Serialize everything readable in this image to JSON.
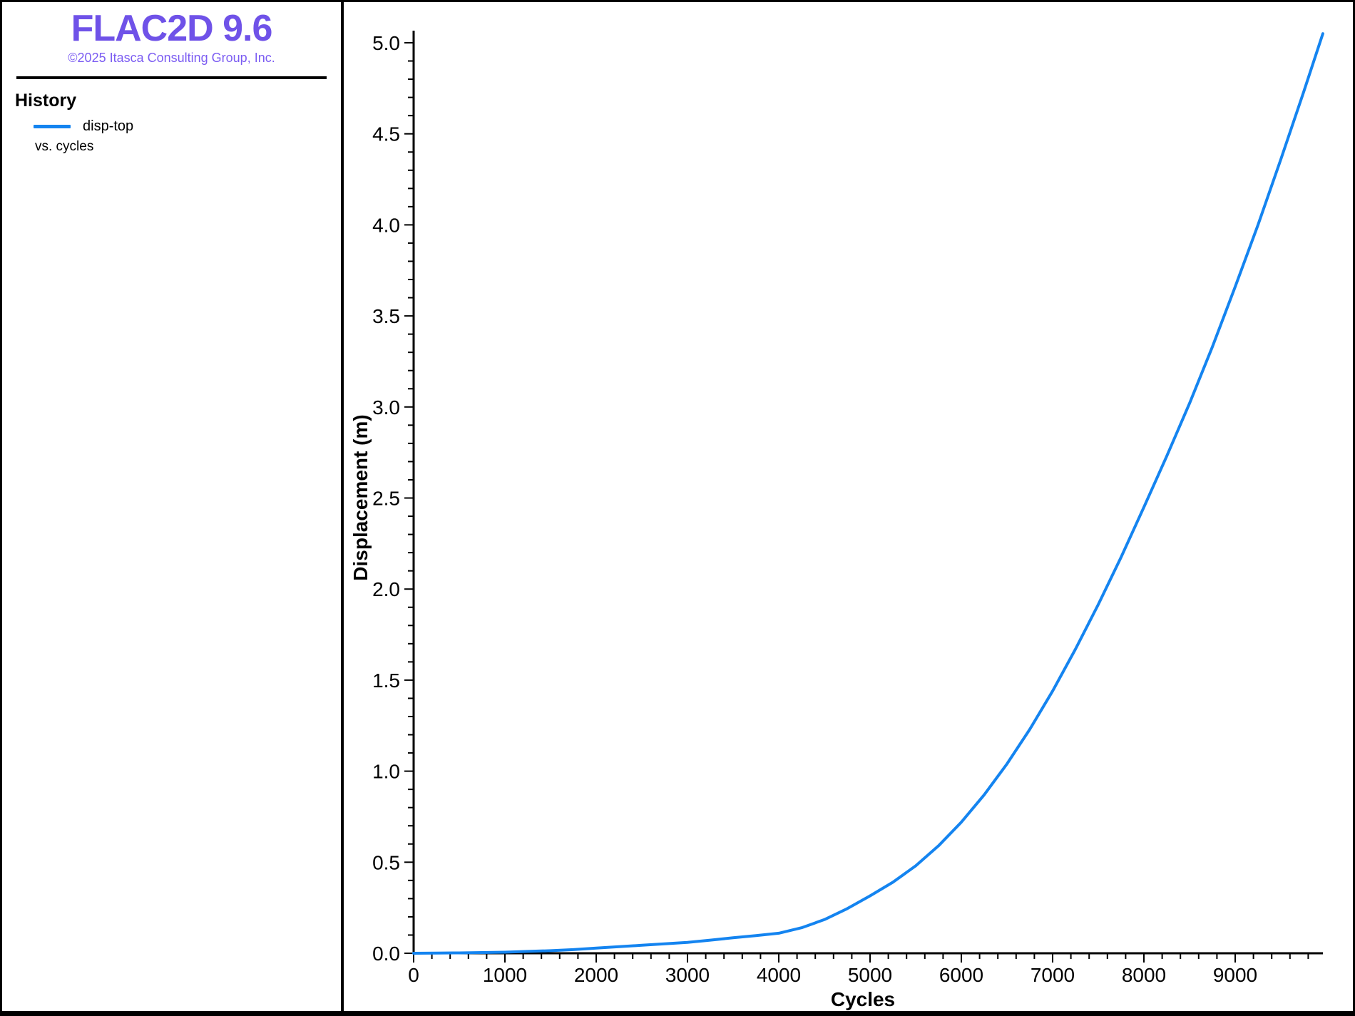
{
  "app": {
    "title": "FLAC2D 9.6",
    "copyright": "©2025 Itasca Consulting Group, Inc."
  },
  "sidebar": {
    "history_title": "History",
    "legend": [
      {
        "label": "disp-top",
        "color": "#1484F0"
      }
    ],
    "legend_sub": "vs. cycles"
  },
  "colors": {
    "logo": "#6F52E8",
    "copyright": "#7B5CF2",
    "curve": "#1484F0",
    "axis": "#000000",
    "background": "#FFFFFF"
  },
  "chart_data": {
    "type": "line",
    "title": "",
    "xlabel": "Cycles",
    "ylabel": "Displacement (m)",
    "xlim": [
      0,
      9960
    ],
    "ylim": [
      0,
      5.06
    ],
    "grid": false,
    "legend_position": "sidebar-top-left",
    "x_major_ticks": [
      0,
      1000,
      2000,
      3000,
      4000,
      5000,
      6000,
      7000,
      8000,
      9000
    ],
    "x_tick_labels": [
      "0",
      "1000",
      "2000",
      "3000",
      "4000",
      "5000",
      "6000",
      "7000",
      "8000",
      "9000"
    ],
    "x_minor_step": 200,
    "y_major_ticks": [
      0.0,
      0.5,
      1.0,
      1.5,
      2.0,
      2.5,
      3.0,
      3.5,
      4.0,
      4.5,
      5.0
    ],
    "y_tick_labels": [
      "0.0",
      "0.5",
      "1.0",
      "1.5",
      "2.0",
      "2.5",
      "3.0",
      "3.5",
      "4.0",
      "4.5",
      "5.0"
    ],
    "y_minor_step": 0.1,
    "series": [
      {
        "name": "disp-top",
        "color": "#1484F0",
        "x": [
          0,
          250,
          500,
          750,
          1000,
          1250,
          1500,
          1750,
          2000,
          2250,
          2500,
          2750,
          3000,
          3250,
          3500,
          3750,
          4000,
          4250,
          4500,
          4750,
          5000,
          5250,
          5500,
          5750,
          6000,
          6250,
          6500,
          6750,
          7000,
          7250,
          7500,
          7750,
          8000,
          8250,
          8500,
          8750,
          9000,
          9250,
          9500,
          9750,
          9960
        ],
        "y": [
          0.0,
          0.001,
          0.002,
          0.004,
          0.006,
          0.01,
          0.014,
          0.02,
          0.028,
          0.036,
          0.044,
          0.052,
          0.06,
          0.072,
          0.085,
          0.097,
          0.11,
          0.14,
          0.185,
          0.245,
          0.315,
          0.39,
          0.48,
          0.59,
          0.72,
          0.87,
          1.04,
          1.23,
          1.44,
          1.67,
          1.915,
          2.175,
          2.45,
          2.73,
          3.02,
          3.33,
          3.66,
          4.0,
          4.36,
          4.73,
          5.05
        ]
      }
    ]
  }
}
